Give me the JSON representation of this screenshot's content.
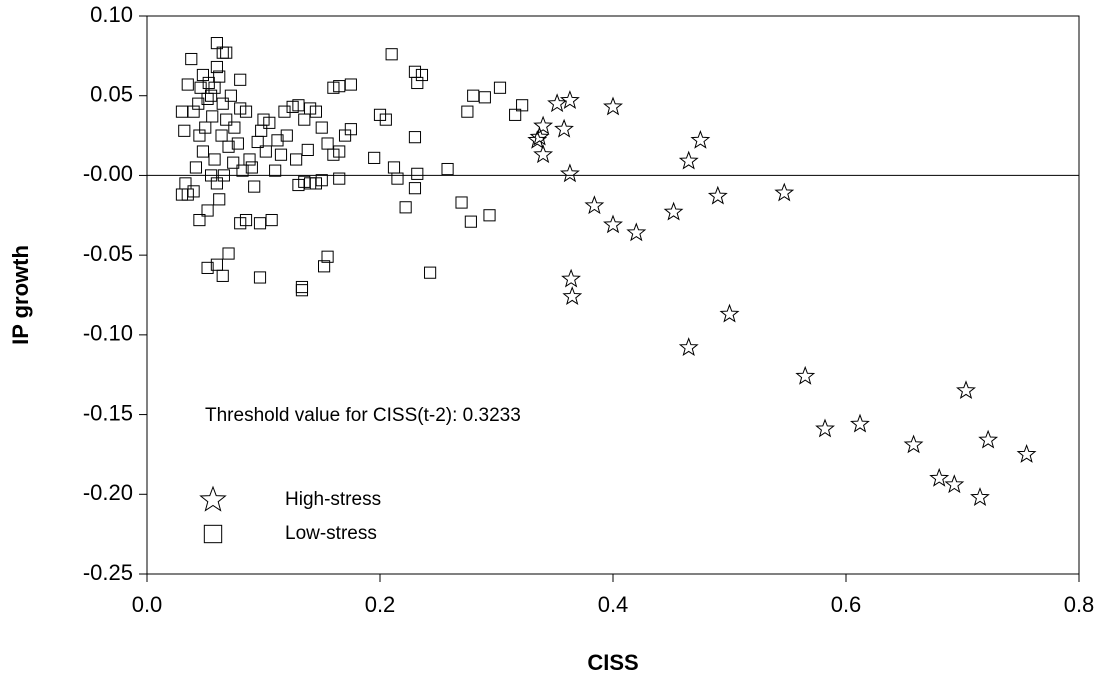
{
  "chart_data": {
    "type": "scatter",
    "xlabel": "CISS",
    "ylabel": "IP growth",
    "annotation": "Threshold value for CISS(t-2): 0.3233",
    "xlim": [
      0,
      0.8
    ],
    "ylim": [
      -0.25,
      0.1
    ],
    "xticks": [
      {
        "value": 0,
        "label": "0.0"
      },
      {
        "value": 0.2,
        "label": "0.2"
      },
      {
        "value": 0.4,
        "label": "0.4"
      },
      {
        "value": 0.6,
        "label": "0.6"
      },
      {
        "value": 0.8,
        "label": "0.8"
      }
    ],
    "yticks": [
      {
        "value": 0.1,
        "label": "0.10"
      },
      {
        "value": 0.05,
        "label": "0.05"
      },
      {
        "value": 0,
        "label": "-0.00"
      },
      {
        "value": -0.05,
        "label": "-0.05"
      },
      {
        "value": -0.1,
        "label": "-0.10"
      },
      {
        "value": -0.15,
        "label": "-0.15"
      },
      {
        "value": -0.2,
        "label": "-0.20"
      },
      {
        "value": -0.25,
        "label": "-0.25"
      }
    ],
    "zero_line": true,
    "legend_position": "lower left",
    "series": [
      {
        "name": "High-stress",
        "color": "#000000",
        "marker": "star",
        "x": [
          0.335,
          0.337,
          0.34,
          0.34,
          0.352,
          0.358,
          0.363,
          0.363,
          0.364,
          0.365,
          0.384,
          0.4,
          0.4,
          0.42,
          0.452,
          0.465,
          0.475,
          0.465,
          0.49,
          0.5,
          0.547,
          0.565,
          0.582,
          0.612,
          0.658,
          0.68,
          0.693,
          0.703,
          0.715,
          0.722,
          0.755
        ],
        "values": [
          0.022,
          0.024,
          0.031,
          0.013,
          0.045,
          0.029,
          0.047,
          0.001,
          -0.065,
          -0.076,
          -0.019,
          0.043,
          -0.031,
          -0.036,
          -0.023,
          0.009,
          0.022,
          -0.108,
          -0.013,
          -0.087,
          -0.011,
          -0.126,
          -0.159,
          -0.156,
          -0.169,
          -0.19,
          -0.194,
          -0.135,
          -0.202,
          -0.166,
          -0.175
        ]
      },
      {
        "name": "Low-stress",
        "color": "#000000",
        "marker": "square",
        "x": [
          0.06,
          0.065,
          0.068,
          0.21,
          0.23,
          0.236,
          0.08,
          0.175,
          0.165,
          0.16,
          0.232,
          0.28,
          0.29,
          0.303,
          0.322,
          0.316,
          0.2,
          0.205,
          0.275,
          0.23,
          0.195,
          0.212,
          0.258,
          0.232,
          0.215,
          0.23,
          0.222,
          0.27,
          0.278,
          0.294,
          0.243,
          0.155,
          0.152,
          0.133,
          0.133,
          0.097,
          0.07,
          0.065,
          0.06,
          0.052,
          0.107,
          0.097,
          0.08,
          0.085,
          0.045,
          0.052,
          0.03,
          0.035,
          0.04,
          0.033,
          0.15,
          0.145,
          0.14,
          0.135,
          0.13,
          0.165,
          0.175,
          0.17,
          0.165,
          0.16,
          0.155,
          0.15,
          0.145,
          0.14,
          0.135,
          0.13,
          0.125,
          0.12,
          0.115,
          0.11,
          0.105,
          0.1,
          0.095,
          0.09,
          0.085,
          0.08,
          0.075,
          0.07,
          0.065,
          0.062,
          0.058,
          0.055,
          0.052,
          0.05,
          0.048,
          0.045,
          0.042,
          0.04,
          0.035,
          0.032,
          0.03,
          0.038,
          0.055,
          0.06,
          0.062,
          0.058,
          0.068,
          0.072,
          0.078,
          0.088,
          0.092,
          0.098,
          0.102,
          0.112,
          0.118,
          0.128,
          0.138,
          0.06,
          0.064,
          0.056,
          0.046,
          0.044,
          0.082,
          0.074,
          0.066,
          0.048,
          0.053
        ],
        "values": [
          0.083,
          0.077,
          0.077,
          0.076,
          0.065,
          0.063,
          0.06,
          0.057,
          0.056,
          0.055,
          0.058,
          0.05,
          0.049,
          0.055,
          0.044,
          0.038,
          0.038,
          0.035,
          0.04,
          0.024,
          0.011,
          0.005,
          0.004,
          0.001,
          -0.002,
          -0.008,
          -0.02,
          -0.017,
          -0.029,
          -0.025,
          -0.061,
          -0.051,
          -0.057,
          -0.07,
          -0.072,
          -0.064,
          -0.049,
          -0.063,
          -0.056,
          -0.058,
          -0.028,
          -0.03,
          -0.03,
          -0.028,
          -0.028,
          -0.022,
          -0.012,
          -0.012,
          -0.01,
          -0.005,
          -0.003,
          -0.005,
          -0.005,
          -0.004,
          -0.006,
          -0.002,
          0.029,
          0.025,
          0.015,
          0.013,
          0.02,
          0.03,
          0.04,
          0.042,
          0.035,
          0.044,
          0.043,
          0.025,
          0.013,
          0.003,
          0.033,
          0.035,
          0.021,
          0.005,
          0.04,
          0.042,
          0.03,
          0.018,
          0.045,
          0.062,
          0.055,
          0.05,
          0.048,
          0.03,
          0.015,
          0.025,
          0.005,
          0.04,
          0.057,
          0.028,
          0.04,
          0.073,
          0.0,
          -0.005,
          -0.015,
          0.01,
          0.035,
          0.05,
          0.02,
          0.01,
          -0.007,
          0.028,
          0.015,
          0.022,
          0.04,
          0.01,
          0.016,
          0.068,
          0.025,
          0.037,
          0.055,
          0.045,
          0.003,
          0.008,
          0.0,
          0.063,
          0.058
        ]
      }
    ]
  }
}
